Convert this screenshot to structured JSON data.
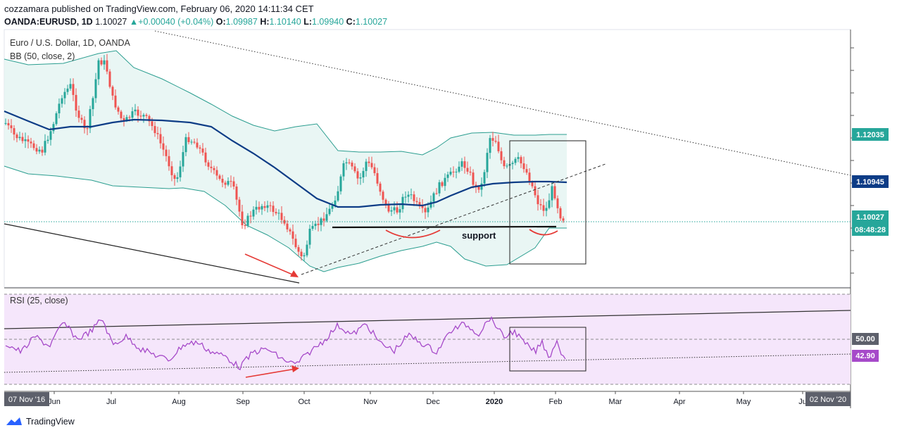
{
  "header": {
    "published_line": "cozzamara published on TradingView.com, February 06, 2020 14:11:34 CET",
    "symbol": "OANDA:EURUSD, 1D",
    "last": "1.10027",
    "change": "+0.00040 (+0.04%)",
    "open_label": "O:",
    "open": "1.09987",
    "high_label": "H:",
    "high": "1.10140",
    "low_label": "L:",
    "low": "1.09940",
    "close_label": "C:",
    "close": "1.10027"
  },
  "legend": {
    "title": "Euro / U.S. Dollar, 1D, OANDA",
    "indicator": "BB (50, close, 2)"
  },
  "rsi": {
    "label": "RSI (25, close)",
    "level_50": "50.00",
    "current": "42.90"
  },
  "annotations": {
    "support_label": "support"
  },
  "price_badges": [
    {
      "text": "1.12035",
      "color": "#26a69a"
    },
    {
      "text": "1.10945",
      "color": "#0d3c86"
    },
    {
      "text": "1.10027",
      "color": "#26a69a"
    },
    {
      "text": "08:48:28",
      "color": "#26a69a"
    }
  ],
  "time_axis": {
    "start_label": "07 Nov '16",
    "end_label": "02 Nov '20",
    "labels": [
      "Jun",
      "Jul",
      "Aug",
      "Sep",
      "Oct",
      "Nov",
      "Dec",
      "2020",
      "Feb",
      "Mar",
      "Apr",
      "May",
      "Ju"
    ]
  },
  "footer": {
    "brand": "TradingView"
  },
  "colors": {
    "up": "#26a69a",
    "down": "#ef5350",
    "bb_basis": "#0d3c86",
    "bb_band": "#2a9d8f",
    "rsi_line": "#a64ac9",
    "rsi_bg": "#f5e6fb"
  },
  "chart_data": {
    "type": "candlestick",
    "symbol": "EURUSD",
    "interval": "1D",
    "indicators": [
      "BB (50, close, 2)",
      "RSI (25, close)"
    ],
    "price_last": 1.10027,
    "bb_basis_last": 1.10945,
    "bb_upper_last": 1.12035,
    "rsi_last": 42.9,
    "rsi_reference": 50.0
  }
}
